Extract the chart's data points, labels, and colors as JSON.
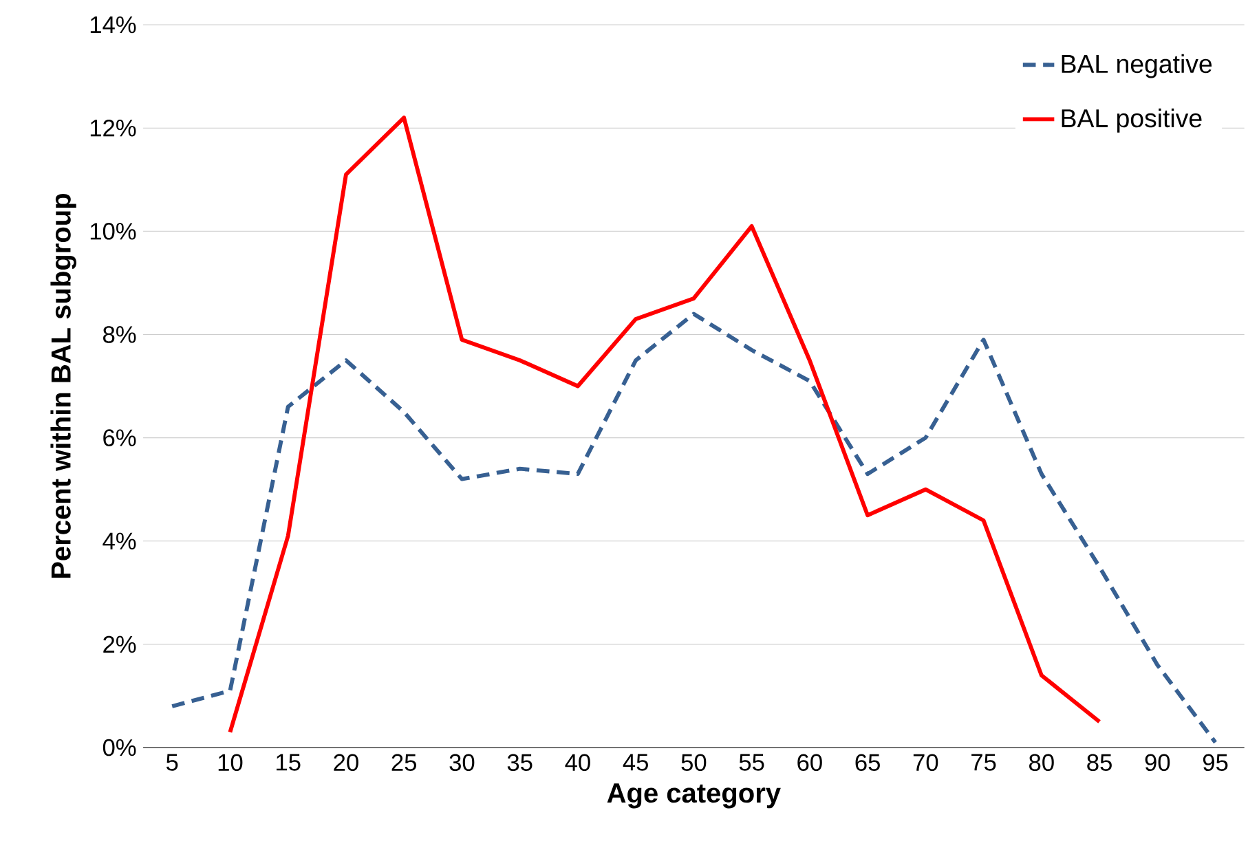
{
  "chart_data": {
    "type": "line",
    "xlabel": "Age category",
    "ylabel": "Percent within BAL subgroup",
    "categories": [
      "5",
      "10",
      "15",
      "20",
      "25",
      "30",
      "35",
      "40",
      "45",
      "50",
      "55",
      "60",
      "65",
      "70",
      "75",
      "80",
      "85",
      "90",
      "95"
    ],
    "series": [
      {
        "name": "BAL negative",
        "color": "#376092",
        "line_style": "dashed",
        "values": [
          0.8,
          1.1,
          6.6,
          7.5,
          6.5,
          5.2,
          5.4,
          5.3,
          7.5,
          8.4,
          7.7,
          7.1,
          5.3,
          6.0,
          7.9,
          5.3,
          3.5,
          1.6,
          0.1
        ]
      },
      {
        "name": "BAL positive",
        "color": "#ff0000",
        "line_style": "solid",
        "values": [
          null,
          0.3,
          4.1,
          11.1,
          12.2,
          7.9,
          7.5,
          7.0,
          8.3,
          8.7,
          10.1,
          7.5,
          4.5,
          5.0,
          4.4,
          1.4,
          0.5,
          null,
          null
        ]
      }
    ],
    "ylim": [
      0,
      14
    ],
    "yticks": [
      {
        "value": 0,
        "label": "0%"
      },
      {
        "value": 2,
        "label": "2%"
      },
      {
        "value": 4,
        "label": "4%"
      },
      {
        "value": 6,
        "label": "6%"
      },
      {
        "value": 8,
        "label": "8%"
      },
      {
        "value": 10,
        "label": "10%"
      },
      {
        "value": 12,
        "label": "12%"
      },
      {
        "value": 14,
        "label": "14%"
      }
    ],
    "grid": "y",
    "legend": "top right",
    "marker": "none"
  }
}
